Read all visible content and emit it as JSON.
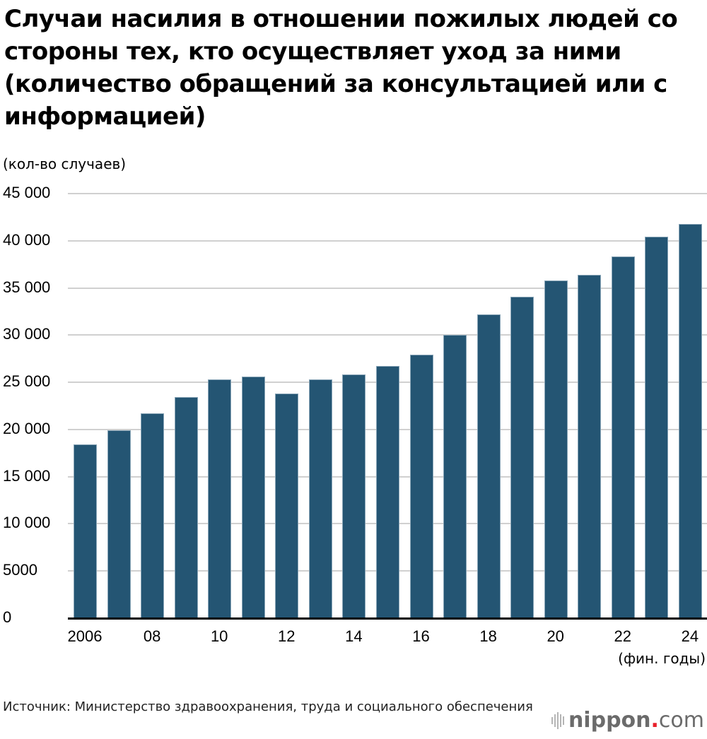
{
  "title": "Случаи насилия в отношении пожилых людей со стороны тех, кто осуществляет уход за ними (количество обращений за консультацией или с информацией)",
  "y_unit": "(кол-во случаев)",
  "x_unit": "(фин. годы)",
  "source": "Источник: Министерство здравоохранения, труда и социального обеспечения",
  "logo": {
    "main": "nippon",
    "dot": ".",
    "suffix": "com"
  },
  "colors": {
    "bar": "#245573",
    "grid": "#d0d0d0"
  },
  "y_ticks": [
    "0",
    "5000",
    "10 000",
    "15 000",
    "20 000",
    "25 000",
    "30 000",
    "35 000",
    "40 000",
    "45 000"
  ],
  "x_tick_labels": [
    "2006",
    "08",
    "10",
    "12",
    "14",
    "16",
    "18",
    "20",
    "22",
    "24"
  ],
  "chart_data": {
    "type": "bar",
    "title": "Случаи насилия в отношении пожилых людей со стороны тех, кто осуществляет уход за ними (количество обращений за консультацией или с информацией)",
    "xlabel": "(фин. годы)",
    "ylabel": "(кол-во случаев)",
    "categories": [
      "2006",
      "2007",
      "2008",
      "2009",
      "2010",
      "2011",
      "2012",
      "2013",
      "2014",
      "2015",
      "2016",
      "2017",
      "2018",
      "2019",
      "2020",
      "2021",
      "2022",
      "2023",
      "2024"
    ],
    "values": [
      18400,
      19900,
      21700,
      23400,
      25300,
      25600,
      23800,
      25300,
      25800,
      26700,
      27900,
      30000,
      32200,
      34100,
      35800,
      36400,
      38300,
      40400,
      41800
    ],
    "ylim": [
      0,
      45000
    ],
    "yticks": [
      0,
      5000,
      10000,
      15000,
      20000,
      25000,
      30000,
      35000,
      40000,
      45000
    ],
    "grid": true,
    "legend": null
  }
}
